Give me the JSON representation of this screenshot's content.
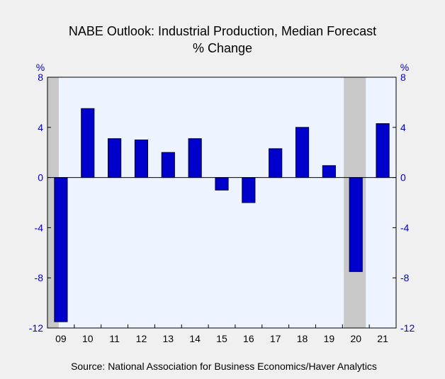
{
  "chart_data": {
    "type": "bar",
    "title": "NABE Outlook: Industrial Production, Median Forecast",
    "subtitle": "% Change",
    "ylabel_left": "%",
    "ylabel_right": "%",
    "ylim": [
      -12,
      8
    ],
    "yticks": [
      8,
      4,
      0,
      -4,
      -8,
      -12
    ],
    "categories": [
      "09",
      "10",
      "11",
      "12",
      "13",
      "14",
      "15",
      "16",
      "17",
      "18",
      "19",
      "20",
      "21"
    ],
    "values": [
      -11.5,
      5.5,
      3.1,
      3.0,
      2.0,
      3.1,
      -1.0,
      -2.0,
      2.3,
      4.0,
      0.95,
      -7.5,
      4.3
    ],
    "recession_shading": [
      "09",
      "20"
    ],
    "grid": false,
    "source": "Source:  National Association for Business Economics/Haver Analytics",
    "colors": {
      "bar_fill": "#0000cc",
      "bar_stroke": "#000033",
      "plot_background": "#eef4ff",
      "recession": "#c8c8c8",
      "tick_label": "#0000cc",
      "text": "#000000"
    }
  }
}
